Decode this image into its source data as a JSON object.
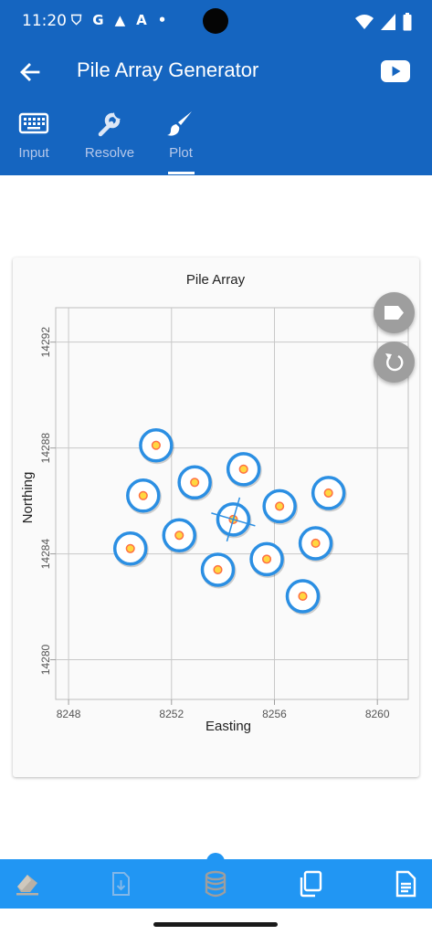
{
  "status_bar": {
    "time": "11:20",
    "left_icons": [
      "shield-icon",
      "google-icon",
      "warning-icon",
      "a-icon",
      "dot-icon"
    ],
    "right_icons": [
      "wifi-icon",
      "signal-icon",
      "battery-icon"
    ],
    "left_glyphs": {
      "shield": "⛉",
      "google": "G",
      "warning": "▲",
      "a": "A",
      "dot": "•"
    }
  },
  "app_bar": {
    "title": "Pile Array Generator",
    "back_icon": "arrow-back-icon",
    "action_icon": "youtube-icon"
  },
  "tabs": [
    {
      "label": "Input",
      "icon": "keyboard-icon",
      "active": false
    },
    {
      "label": "Resolve",
      "icon": "wrench-icon",
      "active": false
    },
    {
      "label": "Plot",
      "icon": "brush-icon",
      "active": true
    }
  ],
  "colors": {
    "primary": "#1565c0",
    "bottom_bar": "#2196f3",
    "pile_ring": "#2b8fe3",
    "pile_center": "#ffd740",
    "pile_center_stroke": "#ff7043",
    "grid": "#c8c8c8",
    "fab": "#9e9e9e"
  },
  "fabs": [
    {
      "name": "label-fab",
      "icon": "label-icon"
    },
    {
      "name": "reset-fab",
      "icon": "refresh-icon"
    }
  ],
  "chart_data": {
    "type": "scatter",
    "title": "Pile Array",
    "xlabel": "Easting",
    "ylabel": "Northing",
    "xlim": [
      8247.5,
      8261.2
    ],
    "ylim": [
      14278.5,
      14293.3
    ],
    "xticks": [
      8248,
      8252,
      8256,
      8260
    ],
    "yticks": [
      14280,
      14284,
      14288,
      14292
    ],
    "grid": true,
    "piles": [
      {
        "x": 8251.4,
        "y": 14288.1
      },
      {
        "x": 8250.9,
        "y": 14286.2
      },
      {
        "x": 8252.9,
        "y": 14286.7
      },
      {
        "x": 8254.8,
        "y": 14287.2
      },
      {
        "x": 8258.1,
        "y": 14286.3
      },
      {
        "x": 8256.2,
        "y": 14285.8
      },
      {
        "x": 8254.4,
        "y": 14285.3
      },
      {
        "x": 8252.3,
        "y": 14284.7
      },
      {
        "x": 8250.4,
        "y": 14284.2
      },
      {
        "x": 8257.6,
        "y": 14284.4
      },
      {
        "x": 8255.7,
        "y": 14283.8
      },
      {
        "x": 8253.8,
        "y": 14283.4
      },
      {
        "x": 8257.1,
        "y": 14282.4
      }
    ],
    "centroid": {
      "x": 8254.4,
      "y": 14285.3
    }
  },
  "bottom_bar": {
    "items": [
      {
        "name": "eraser-button",
        "icon": "eraser-icon",
        "enabled": true
      },
      {
        "name": "download-button",
        "icon": "download-icon",
        "enabled": false
      },
      {
        "name": "database-button",
        "icon": "database-icon",
        "enabled": true
      },
      {
        "name": "copy-button",
        "icon": "copy-icon",
        "enabled": true
      },
      {
        "name": "document-button",
        "icon": "document-icon",
        "enabled": true
      }
    ]
  }
}
